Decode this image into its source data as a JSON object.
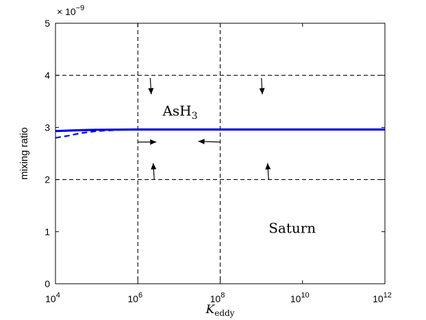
{
  "chart_data": {
    "type": "line",
    "xscale": "log",
    "xlim": [
      10000,
      1000000000000
    ],
    "ylim": [
      0,
      5e-09
    ],
    "y_multiplier_label": {
      "base": "× 10",
      "exp": "−9"
    },
    "xticks": [
      {
        "value": 10000,
        "base": "10",
        "exp": "4"
      },
      {
        "value": 1000000,
        "base": "10",
        "exp": "6"
      },
      {
        "value": 100000000,
        "base": "10",
        "exp": "8"
      },
      {
        "value": 10000000000,
        "base": "10",
        "exp": "10"
      },
      {
        "value": 1000000000000,
        "base": "10",
        "exp": "12"
      }
    ],
    "yticks": [
      {
        "value": 0,
        "label": "0"
      },
      {
        "value": 1e-09,
        "label": "1"
      },
      {
        "value": 2e-09,
        "label": "2"
      },
      {
        "value": 3e-09,
        "label": "3"
      },
      {
        "value": 4e-09,
        "label": "4"
      },
      {
        "value": 5e-09,
        "label": "5"
      }
    ],
    "xlabel": {
      "main": "K",
      "sub": "eddy"
    },
    "ylabel": "mixing ratio",
    "series": [
      {
        "style": "solid",
        "color": "#0000ee",
        "x": [
          10000,
          30000,
          100000,
          1000000,
          100000000,
          1000000000000
        ],
        "y": [
          2.93e-09,
          2.945e-09,
          2.955e-09,
          2.96e-09,
          2.96e-09,
          2.96e-09
        ]
      },
      {
        "style": "dashed",
        "color": "#0000ee",
        "x": [
          10000,
          20000,
          40000,
          100000,
          300000,
          1000000,
          1000000000000
        ],
        "y": [
          2.8e-09,
          2.84e-09,
          2.89e-09,
          2.93e-09,
          2.95e-09,
          2.96e-09,
          2.96e-09
        ]
      }
    ],
    "reference_lines": {
      "vertical_x": [
        1000000,
        100000000
      ],
      "horizontal_y": [
        4e-09,
        2e-09
      ]
    },
    "arrows": [
      {
        "x": 2000000,
        "y": 3.95e-09,
        "dir": "down"
      },
      {
        "x": 1000000000,
        "y": 3.95e-09,
        "dir": "down"
      },
      {
        "x": 2500000,
        "y": 2e-09,
        "dir": "up"
      },
      {
        "x": 1500000000,
        "y": 2e-09,
        "dir": "up"
      },
      {
        "x": 1000000,
        "y": 2.72e-09,
        "dir": "right"
      },
      {
        "x": 100000000,
        "y": 2.72e-09,
        "dir": "left"
      }
    ],
    "annotations": [
      {
        "text": "AsH",
        "sub": "3",
        "x": 4000000,
        "y": 3.23e-09,
        "color": "#0000ee"
      },
      {
        "text": "Saturn",
        "x": 1500000000,
        "y": 9.8e-10,
        "color": "#000000"
      }
    ],
    "grid": false,
    "legend": "none"
  }
}
